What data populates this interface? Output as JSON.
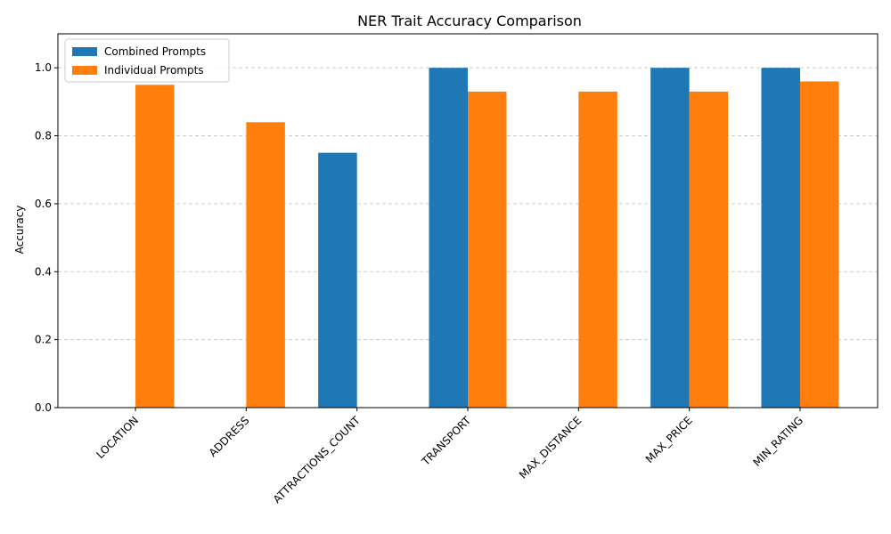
{
  "chart_data": {
    "type": "bar",
    "title": "NER Trait Accuracy Comparison",
    "xlabel": "",
    "ylabel": "Accuracy",
    "ylim": [
      0,
      1.1
    ],
    "yticks": [
      "0.0",
      "0.2",
      "0.4",
      "0.6",
      "0.8",
      "1.0"
    ],
    "grid": "y-dashed",
    "legend_position": "top-left",
    "categories": [
      "LOCATION",
      "ADDRESS",
      "ATTRACTIONS_COUNT",
      "TRANSPORT",
      "MAX_DISTANCE",
      "MAX_PRICE",
      "MIN_RATING"
    ],
    "series": [
      {
        "name": "Combined Prompts",
        "color": "#1f77b4",
        "values": [
          0,
          0,
          0.75,
          1.0,
          0,
          1.0,
          1.0
        ]
      },
      {
        "name": "Individual Prompts",
        "color": "#ff7f0e",
        "values": [
          0.95,
          0.84,
          0,
          0.93,
          0.93,
          0.93,
          0.96
        ]
      }
    ]
  }
}
